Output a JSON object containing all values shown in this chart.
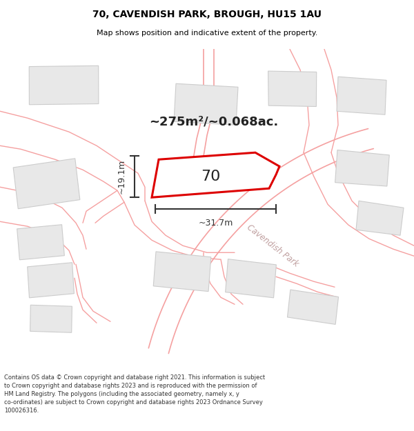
{
  "title": "70, CAVENDISH PARK, BROUGH, HU15 1AU",
  "subtitle": "Map shows position and indicative extent of the property.",
  "footer": "Contains OS data © Crown copyright and database right 2021. This information is subject\nto Crown copyright and database rights 2023 and is reproduced with the permission of\nHM Land Registry. The polygons (including the associated geometry, namely x, y\nco-ordinates) are subject to Crown copyright and database rights 2023 Ordnance Survey\n100026316.",
  "area_text": "~275m²/~0.068ac.",
  "plot_number": "70",
  "dim_width": "~31.7m",
  "dim_height": "~19.1m",
  "map_bg": "#ffffff",
  "plot_fill": "#ffffff",
  "plot_edge": "#dd0000",
  "road_color": "#f5a0a0",
  "building_fill": "#e8e8e8",
  "building_edge": "#cccccc",
  "title_color": "#000000",
  "footer_color": "#333333",
  "dim_color": "#333333",
  "area_color": "#222222",
  "cavendish_color": "#c0a0a0",
  "plot_lw": 2.2,
  "road_lw": 1.0
}
